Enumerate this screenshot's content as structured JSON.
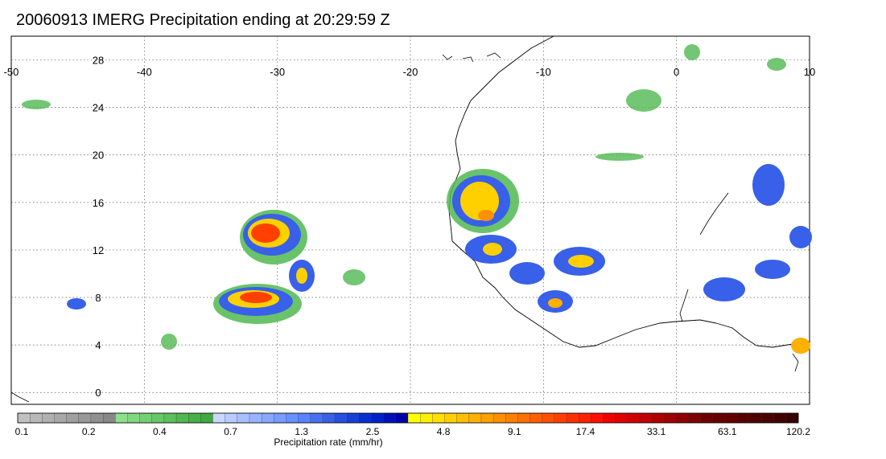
{
  "title": "20060913 IMERG Precipitation ending at 20:29:59 Z",
  "map": {
    "lon_ticks": [
      "-50",
      "-40",
      "-30",
      "-20",
      "-10",
      "0",
      "10"
    ],
    "lat_ticks": [
      "0",
      "4",
      "8",
      "12",
      "16",
      "20",
      "24",
      "28"
    ],
    "lon_range": [
      -50,
      10
    ],
    "lat_range": [
      -1,
      30
    ],
    "grid": "dotted"
  },
  "colorbar": {
    "label": "Precipitation rate (mm/hr)",
    "tick_labels": [
      "0.1",
      "0.2",
      "0.4",
      "0.7",
      "1.3",
      "2.5",
      "4.8",
      "9.1",
      "17.4",
      "33.1",
      "63.1",
      "120.2"
    ],
    "colors": [
      "#c0c0c0",
      "#b8b8b8",
      "#b0b0b0",
      "#a8a8a8",
      "#a0a0a0",
      "#989898",
      "#909090",
      "#888888",
      "#8ce08c",
      "#80d880",
      "#74d074",
      "#68c868",
      "#5cc05c",
      "#50b850",
      "#48b048",
      "#40a840",
      "#c8d8ff",
      "#b8ccff",
      "#a8c0ff",
      "#98b4ff",
      "#88a8ff",
      "#789cff",
      "#6890ff",
      "#5884ff",
      "#4870f0",
      "#3860e8",
      "#2850e0",
      "#1840d8",
      "#0830d0",
      "#0020c8",
      "#0010b8",
      "#0000a8",
      "#ffff00",
      "#fff000",
      "#ffe000",
      "#ffd000",
      "#ffc000",
      "#ffb000",
      "#ffa000",
      "#ff9000",
      "#ff8000",
      "#ff7000",
      "#ff6000",
      "#ff5000",
      "#ff4000",
      "#ff3000",
      "#ff2000",
      "#ff1000",
      "#f00000",
      "#e00000",
      "#d00000",
      "#c00000",
      "#b00000",
      "#a00000",
      "#900000",
      "#800000",
      "#700000",
      "#680000",
      "#600000",
      "#580000",
      "#500000",
      "#480000",
      "#400000",
      "#380000"
    ]
  }
}
